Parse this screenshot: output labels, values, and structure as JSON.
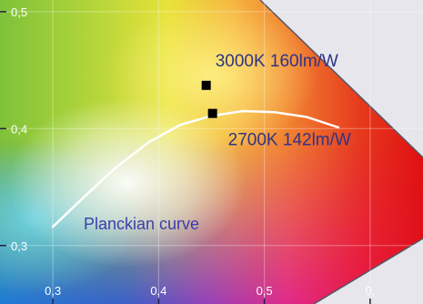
{
  "chart_data": {
    "type": "scatter",
    "title": "",
    "xlabel": "",
    "ylabel": "",
    "xlim": [
      0.25,
      0.65
    ],
    "ylim": [
      0.25,
      0.51
    ],
    "grid": true,
    "x_ticks": [
      {
        "value": 0.3,
        "label": "0,3"
      },
      {
        "value": 0.4,
        "label": "0,4"
      },
      {
        "value": 0.5,
        "label": "0,5"
      },
      {
        "value": 0.6,
        "label": "0,"
      }
    ],
    "y_ticks": [
      {
        "value": 0.3,
        "label": "0,3"
      },
      {
        "value": 0.4,
        "label": "0,4"
      },
      {
        "value": 0.5,
        "label": "0,5"
      }
    ],
    "series": [
      {
        "name": "Planckian curve",
        "kind": "line",
        "color": "#ffffff",
        "x": [
          0.3,
          0.33,
          0.36,
          0.39,
          0.42,
          0.45,
          0.48,
          0.51,
          0.54,
          0.57
        ],
        "y": [
          0.316,
          0.342,
          0.367,
          0.388,
          0.403,
          0.411,
          0.415,
          0.414,
          0.41,
          0.401
        ]
      },
      {
        "name": "",
        "kind": "points",
        "color": "#000000",
        "points": [
          {
            "x": 0.445,
            "y": 0.437,
            "label": "3000K 160lm/W"
          },
          {
            "x": 0.451,
            "y": 0.413,
            "label": "2700K 142lm/W"
          }
        ]
      }
    ],
    "curve_label": "Planckian curve"
  }
}
